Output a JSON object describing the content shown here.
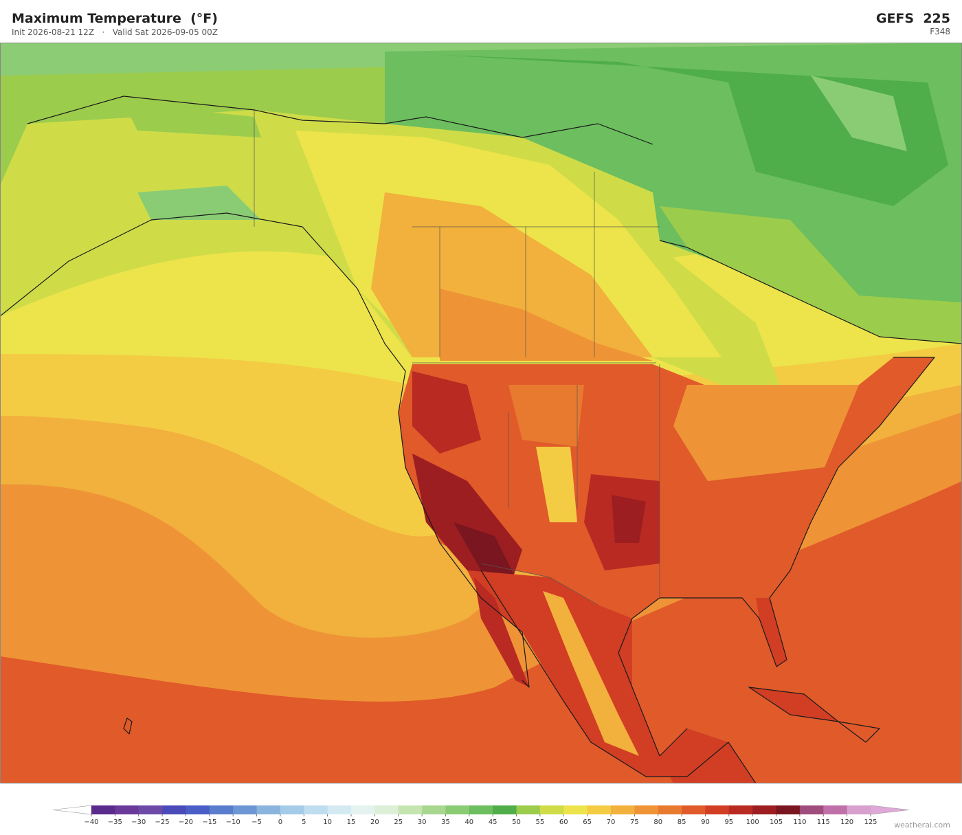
{
  "header": {
    "title": "Maximum Temperature  (°F)",
    "subtitle": "Init 2026-08-21 12Z   ·   Valid Sat 2026-09-05 00Z",
    "model": "GEFS  225",
    "forecast_hour": "F348"
  },
  "colorbar": {
    "ticks": [
      {
        "value": -40,
        "label": "−40"
      },
      {
        "value": -35,
        "label": "−35"
      },
      {
        "value": -30,
        "label": "−30"
      },
      {
        "value": -25,
        "label": "−25"
      },
      {
        "value": -20,
        "label": "−20"
      },
      {
        "value": -15,
        "label": "−15"
      },
      {
        "value": -10,
        "label": "−10"
      },
      {
        "value": -5,
        "label": "−5"
      },
      0,
      5,
      10,
      15,
      20,
      25,
      30,
      35,
      40,
      45,
      50,
      55,
      60,
      65,
      70,
      75,
      80,
      85,
      90,
      95,
      100,
      105,
      110,
      115,
      120,
      125
    ],
    "colors": [
      "#5a2a8c",
      "#6a3a9a",
      "#6e4aa8",
      "#4a4ab8",
      "#4a5ec8",
      "#5a7ccc",
      "#6c96d4",
      "#8ab4de",
      "#a4cce8",
      "#bedeef",
      "#d4eaf2",
      "#e4f2f0",
      "#dcf0d8",
      "#c4e4b0",
      "#a8d890",
      "#8acc74",
      "#6cbe5e",
      "#4fad4a",
      "#9ccc4c",
      "#cfdc48",
      "#ece44a",
      "#f4cc44",
      "#f2b03c",
      "#ee9436",
      "#e87a30",
      "#e05a2a",
      "#d13e24",
      "#b82a22",
      "#9c1e20",
      "#7a1620",
      "#a04c7c",
      "#c070a8",
      "#d8a0cc"
    ],
    "extend_low_color": "#ffffff",
    "extend_high_color": "#e0a8d8"
  },
  "watermark": "weatherai.com"
}
